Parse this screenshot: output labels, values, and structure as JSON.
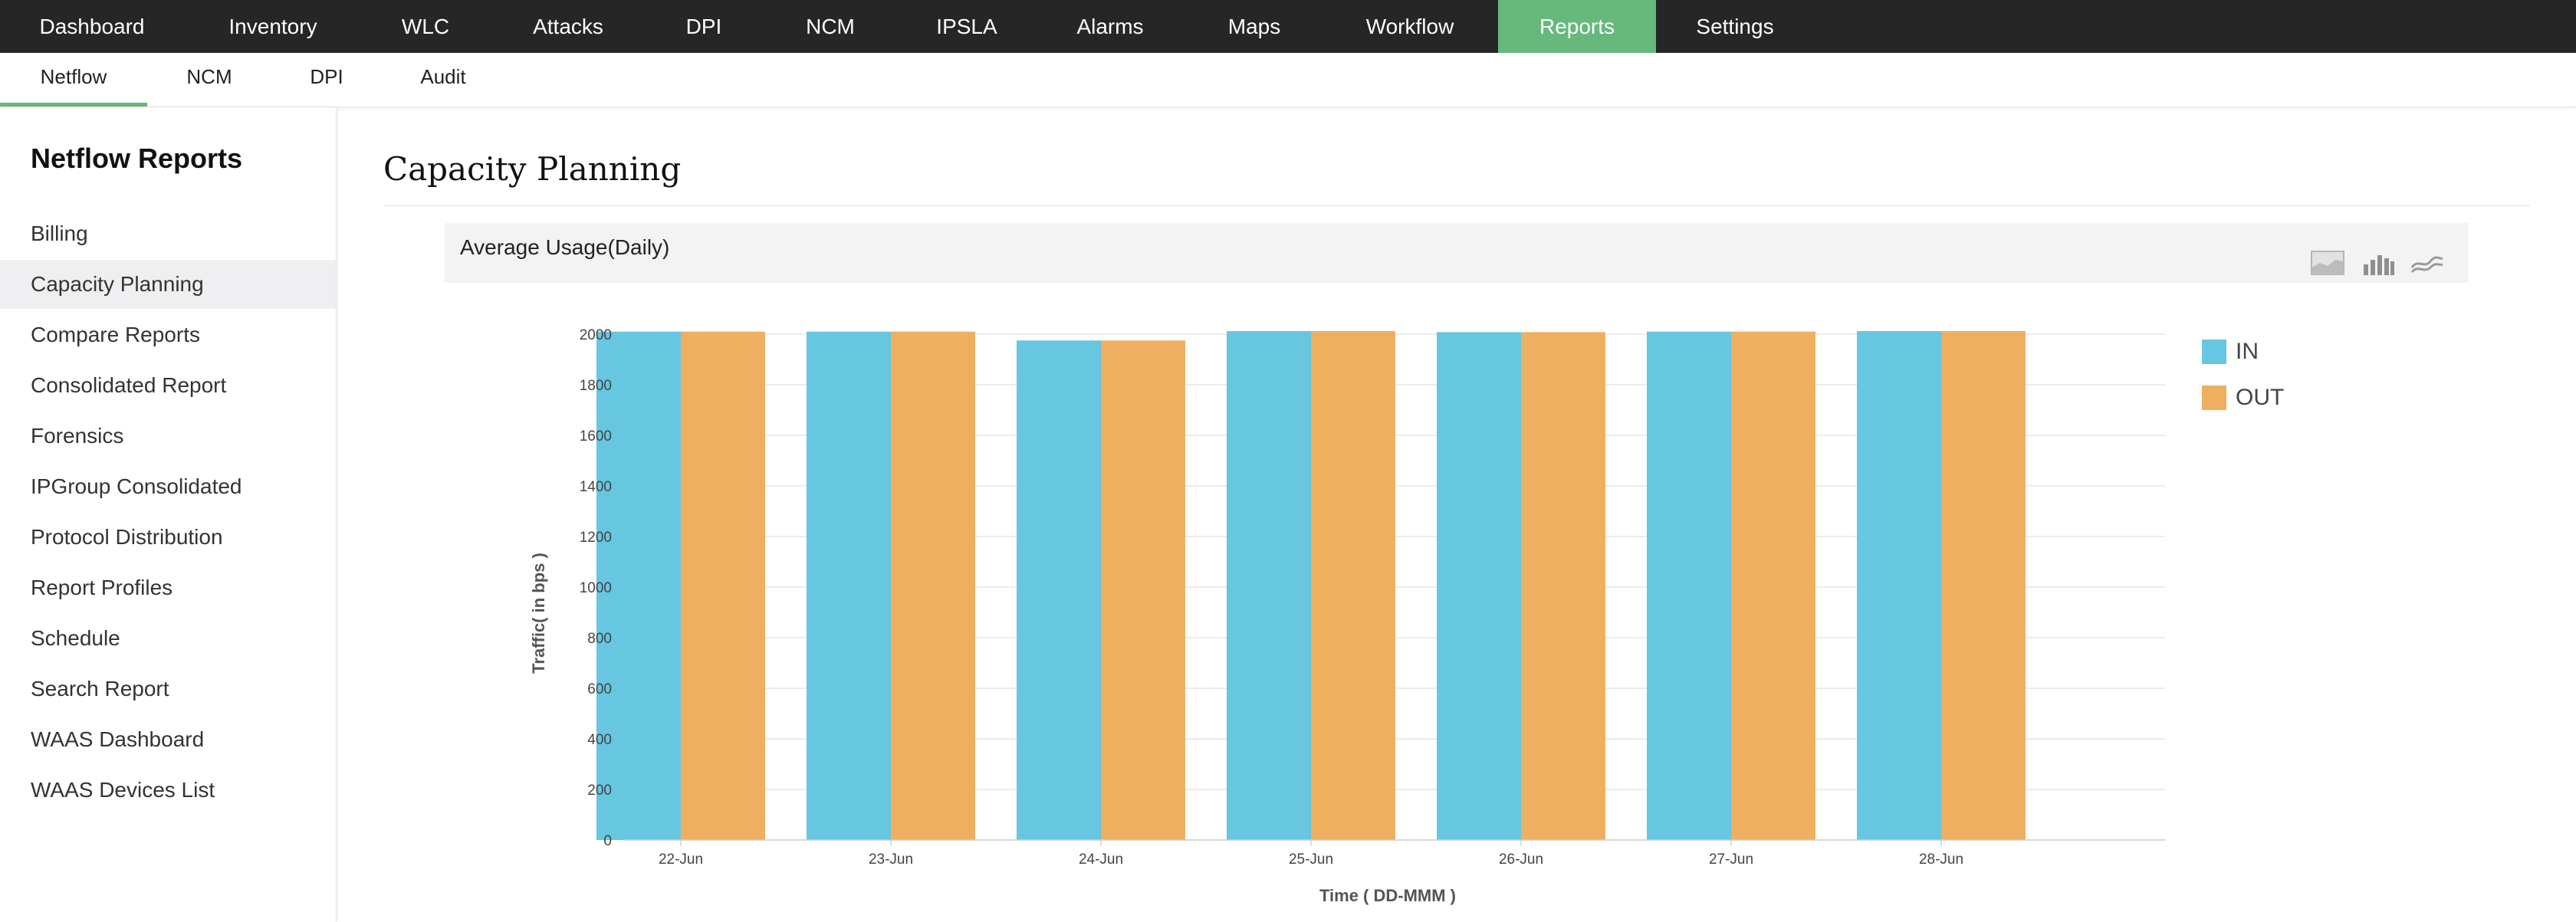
{
  "top_nav": {
    "items": [
      {
        "label": "Dashboard"
      },
      {
        "label": "Inventory"
      },
      {
        "label": "WLC"
      },
      {
        "label": "Attacks"
      },
      {
        "label": "DPI"
      },
      {
        "label": "NCM"
      },
      {
        "label": "IPSLA"
      },
      {
        "label": "Alarms"
      },
      {
        "label": "Maps"
      },
      {
        "label": "Workflow"
      },
      {
        "label": "Reports",
        "active": true
      },
      {
        "label": "Settings"
      }
    ]
  },
  "sub_nav": {
    "items": [
      {
        "label": "Netflow",
        "active": true
      },
      {
        "label": "NCM"
      },
      {
        "label": "DPI"
      },
      {
        "label": "Audit"
      }
    ]
  },
  "sidebar": {
    "title": "Netflow Reports",
    "items": [
      {
        "label": "Billing"
      },
      {
        "label": "Capacity Planning",
        "active": true
      },
      {
        "label": "Compare Reports"
      },
      {
        "label": "Consolidated Report"
      },
      {
        "label": "Forensics"
      },
      {
        "label": "IPGroup Consolidated"
      },
      {
        "label": "Protocol Distribution"
      },
      {
        "label": "Report Profiles"
      },
      {
        "label": "Schedule"
      },
      {
        "label": "Search Report"
      },
      {
        "label": "WAAS Dashboard"
      },
      {
        "label": "WAAS Devices List"
      }
    ]
  },
  "main": {
    "title": "Capacity Planning",
    "chart_panel": {
      "title": "Average Usage(Daily)",
      "chart_type_icons": [
        "area-chart-icon",
        "bar-chart-icon",
        "line-chart-icon"
      ]
    }
  },
  "colors": {
    "accent": "#66b87c",
    "topbar": "#262626",
    "series_in": "#67c6e0",
    "series_out": "#eeaf60"
  },
  "chart_data": {
    "type": "bar",
    "title": "",
    "xlabel": "Time ( DD-MMM )",
    "ylabel": "Traffic( in bps )",
    "categories": [
      "22-Jun",
      "23-Jun",
      "24-Jun",
      "25-Jun",
      "26-Jun",
      "27-Jun",
      "28-Jun"
    ],
    "series": [
      {
        "name": "IN",
        "color": "#67c6e0",
        "values": [
          2010,
          2010,
          1975,
          2012,
          2008,
          2010,
          2012
        ]
      },
      {
        "name": "OUT",
        "color": "#eeaf60",
        "values": [
          2010,
          2010,
          1975,
          2012,
          2008,
          2010,
          2012
        ]
      }
    ],
    "ylim": [
      0,
      2000
    ],
    "yticks": [
      0,
      200,
      400,
      600,
      800,
      1000,
      1200,
      1400,
      1600,
      1800,
      2000
    ],
    "grid": true,
    "legend": "right"
  }
}
